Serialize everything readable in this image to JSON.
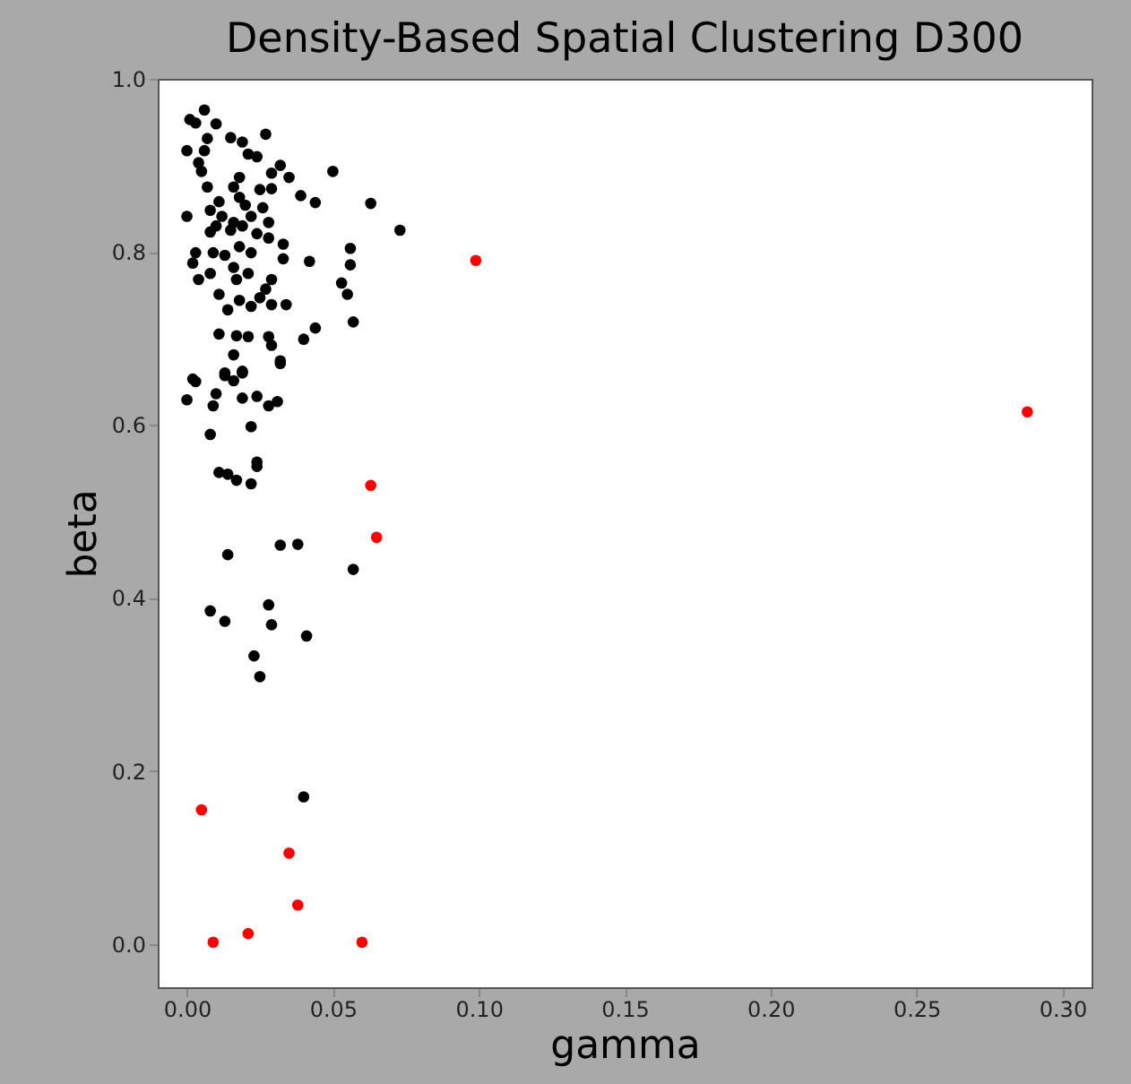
{
  "chart_data": {
    "type": "scatter",
    "title": "Density-Based Spatial Clustering D300",
    "xlabel": "gamma",
    "ylabel": "beta",
    "xlim": [
      -0.01,
      0.31
    ],
    "ylim": [
      -0.05,
      1.0
    ],
    "xticks": [
      {
        "value": 0,
        "label": "0.00"
      },
      {
        "value": 0.05,
        "label": "0.05"
      },
      {
        "value": 0.1,
        "label": "0.10"
      },
      {
        "value": 0.15,
        "label": "0.15"
      },
      {
        "value": 0.2,
        "label": "0.20"
      },
      {
        "value": 0.25,
        "label": "0.25"
      },
      {
        "value": 0.3,
        "label": "0.30"
      }
    ],
    "yticks": [
      {
        "value": 0,
        "label": "0.0"
      },
      {
        "value": 0.2,
        "label": "0.2"
      },
      {
        "value": 0.4,
        "label": "0.4"
      },
      {
        "value": 0.6,
        "label": "0.6"
      },
      {
        "value": 0.8,
        "label": "0.8"
      },
      {
        "value": 1.0,
        "label": "1.0"
      }
    ],
    "grid": false,
    "legend": false,
    "marker": "circle",
    "series": [
      {
        "color": "#000000",
        "x": [
          0.003,
          0.013,
          0.016,
          0.019,
          0.032,
          0.0,
          0.01,
          0.019,
          0.009,
          0.028,
          0.031,
          0.008,
          0.022,
          0.024,
          0.024,
          0.011,
          0.014,
          0.017,
          0.022,
          0.014,
          0.032,
          0.038,
          0.057,
          0.008,
          0.013,
          0.028,
          0.029,
          0.041,
          0.023,
          0.025,
          0.04,
          0.006,
          0.001,
          0.003,
          0.01,
          0.027,
          0.007,
          0.015,
          0.019,
          0.0,
          0.006,
          0.021,
          0.024,
          0.004,
          0.032,
          0.05,
          0.005,
          0.029,
          0.035,
          0.018,
          0.007,
          0.016,
          0.025,
          0.029,
          0.039,
          0.044,
          0.063,
          0.011,
          0.018,
          0.02,
          0.008,
          0.026,
          0.0,
          0.012,
          0.022,
          0.016,
          0.028,
          0.01,
          0.019,
          0.073,
          0.008,
          0.015,
          0.024,
          0.028,
          0.033,
          0.056,
          0.003,
          0.018,
          0.009,
          0.013,
          0.022,
          0.033,
          0.002,
          0.042,
          0.056,
          0.016,
          0.008,
          0.021,
          0.004,
          0.017,
          0.053,
          0.029,
          0.027,
          0.011,
          0.025,
          0.055,
          0.018,
          0.034,
          0.022,
          0.029,
          0.014,
          0.057,
          0.044,
          0.04,
          0.011,
          0.017,
          0.021,
          0.028,
          0.029,
          0.032,
          0.016,
          0.013,
          0.019,
          0.002,
          0.024
        ],
        "values": [
          0.65,
          0.657,
          0.651,
          0.66,
          0.671,
          0.629,
          0.636,
          0.631,
          0.622,
          0.622,
          0.627,
          0.589,
          0.598,
          0.557,
          0.552,
          0.545,
          0.543,
          0.536,
          0.532,
          0.45,
          0.461,
          0.462,
          0.433,
          0.385,
          0.373,
          0.392,
          0.369,
          0.356,
          0.333,
          0.309,
          0.17,
          0.964,
          0.953,
          0.949,
          0.948,
          0.936,
          0.931,
          0.932,
          0.927,
          0.917,
          0.917,
          0.913,
          0.91,
          0.903,
          0.9,
          0.893,
          0.893,
          0.891,
          0.886,
          0.886,
          0.875,
          0.875,
          0.872,
          0.873,
          0.865,
          0.857,
          0.856,
          0.858,
          0.863,
          0.854,
          0.848,
          0.851,
          0.841,
          0.841,
          0.841,
          0.834,
          0.834,
          0.83,
          0.83,
          0.825,
          0.823,
          0.825,
          0.821,
          0.816,
          0.809,
          0.804,
          0.799,
          0.806,
          0.799,
          0.796,
          0.799,
          0.792,
          0.787,
          0.789,
          0.785,
          0.782,
          0.775,
          0.775,
          0.768,
          0.768,
          0.764,
          0.768,
          0.757,
          0.751,
          0.747,
          0.751,
          0.744,
          0.739,
          0.737,
          0.739,
          0.733,
          0.719,
          0.712,
          0.699,
          0.705,
          0.703,
          0.702,
          0.702,
          0.692,
          0.674,
          0.681,
          0.66,
          0.662,
          0.653,
          0.633
        ]
      },
      {
        "color": "#ff0000",
        "x": [
          0.005,
          0.009,
          0.021,
          0.035,
          0.038,
          0.06,
          0.063,
          0.065,
          0.099,
          0.288
        ],
        "values": [
          0.155,
          0.002,
          0.012,
          0.105,
          0.045,
          0.002,
          0.53,
          0.47,
          0.79,
          0.615
        ]
      }
    ]
  }
}
